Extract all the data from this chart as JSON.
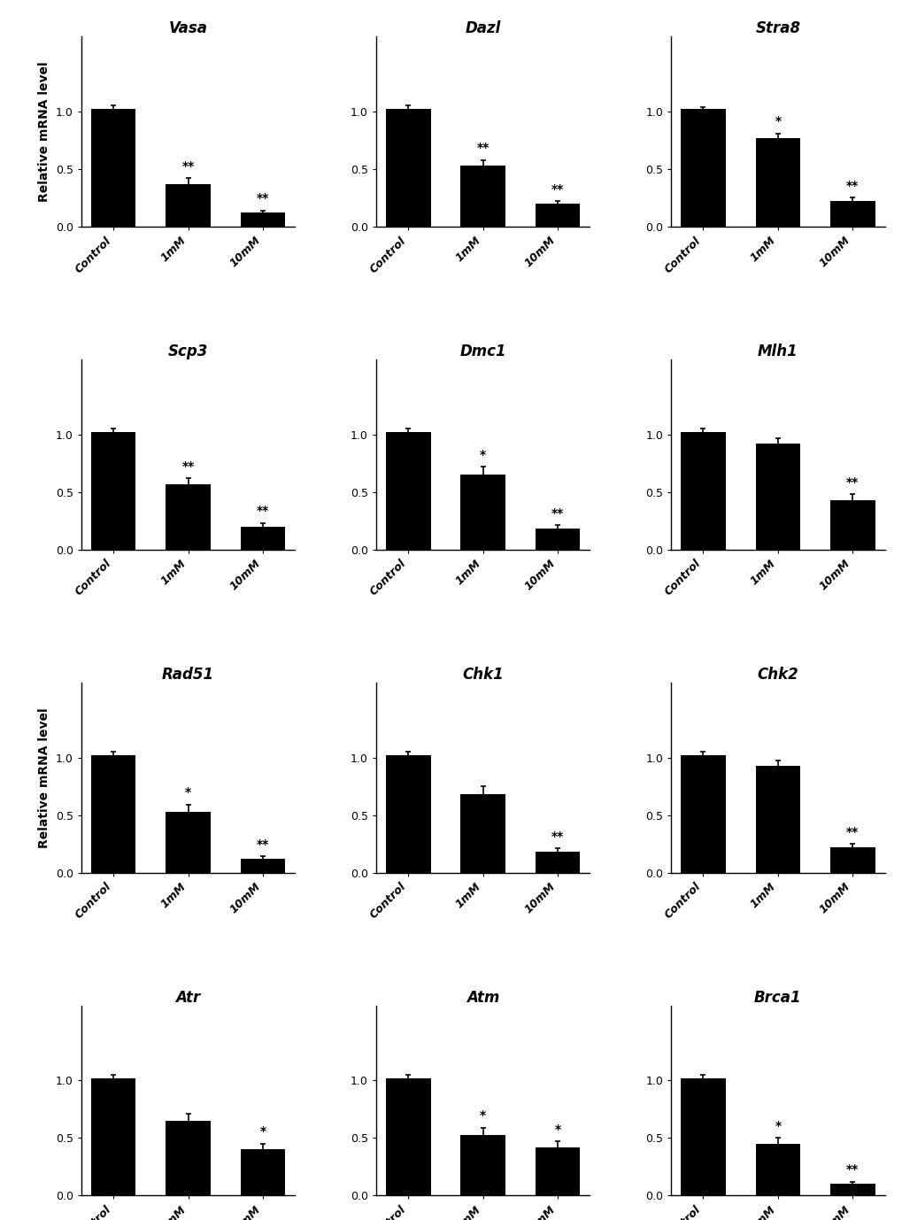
{
  "panels": [
    {
      "title": "Vasa",
      "values": [
        1.02,
        0.37,
        0.12
      ],
      "errors": [
        0.03,
        0.05,
        0.02
      ],
      "sig": [
        "",
        "**",
        "**"
      ],
      "row": 0,
      "col": 0
    },
    {
      "title": "Dazl",
      "values": [
        1.02,
        0.53,
        0.2
      ],
      "errors": [
        0.03,
        0.05,
        0.02
      ],
      "sig": [
        "",
        "**",
        "**"
      ],
      "row": 0,
      "col": 1
    },
    {
      "title": "Stra8",
      "values": [
        1.02,
        0.77,
        0.22
      ],
      "errors": [
        0.02,
        0.04,
        0.03
      ],
      "sig": [
        "",
        "*",
        "**"
      ],
      "row": 0,
      "col": 2
    },
    {
      "title": "Scp3",
      "values": [
        1.02,
        0.57,
        0.2
      ],
      "errors": [
        0.03,
        0.05,
        0.03
      ],
      "sig": [
        "",
        "**",
        "**"
      ],
      "row": 1,
      "col": 0
    },
    {
      "title": "Dmc1",
      "values": [
        1.02,
        0.65,
        0.18
      ],
      "errors": [
        0.03,
        0.07,
        0.03
      ],
      "sig": [
        "",
        "*",
        "**"
      ],
      "row": 1,
      "col": 1
    },
    {
      "title": "Mlh1",
      "values": [
        1.02,
        0.92,
        0.43
      ],
      "errors": [
        0.03,
        0.05,
        0.05
      ],
      "sig": [
        "",
        "",
        "**"
      ],
      "row": 1,
      "col": 2
    },
    {
      "title": "Rad51",
      "values": [
        1.02,
        0.53,
        0.12
      ],
      "errors": [
        0.03,
        0.06,
        0.02
      ],
      "sig": [
        "",
        "*",
        "**"
      ],
      "row": 2,
      "col": 0
    },
    {
      "title": "Chk1",
      "values": [
        1.02,
        0.68,
        0.18
      ],
      "errors": [
        0.03,
        0.07,
        0.03
      ],
      "sig": [
        "",
        "",
        "**"
      ],
      "row": 2,
      "col": 1
    },
    {
      "title": "Chk2",
      "values": [
        1.02,
        0.93,
        0.22
      ],
      "errors": [
        0.03,
        0.04,
        0.03
      ],
      "sig": [
        "",
        "",
        "**"
      ],
      "row": 2,
      "col": 2
    },
    {
      "title": "Atr",
      "values": [
        1.02,
        0.65,
        0.4
      ],
      "errors": [
        0.03,
        0.06,
        0.05
      ],
      "sig": [
        "",
        "",
        "*"
      ],
      "row": 3,
      "col": 0
    },
    {
      "title": "Atm",
      "values": [
        1.02,
        0.53,
        0.42
      ],
      "errors": [
        0.03,
        0.06,
        0.05
      ],
      "sig": [
        "",
        "*",
        "*"
      ],
      "row": 3,
      "col": 1
    },
    {
      "title": "Brca1",
      "values": [
        1.02,
        0.45,
        0.1
      ],
      "errors": [
        0.03,
        0.05,
        0.02
      ],
      "sig": [
        "",
        "*",
        "**"
      ],
      "row": 3,
      "col": 2
    }
  ],
  "categories": [
    "Control",
    "1mM",
    "10mM"
  ],
  "bar_color": "#000000",
  "bar_width": 0.6,
  "ylim": [
    0,
    1.65
  ],
  "yticks": [
    0.0,
    0.5,
    1.0
  ],
  "ylabel_rows": [
    0,
    2
  ],
  "background_color": "#ffffff",
  "title_fontsize": 12,
  "tick_fontsize": 9,
  "ylabel_fontsize": 10,
  "sig_fontsize": 10
}
